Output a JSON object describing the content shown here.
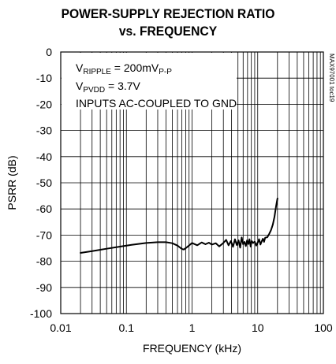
{
  "chart_data": {
    "type": "line",
    "title_line1": "POWER-SUPPLY REJECTION RATIO",
    "title_line2": "vs. FREQUENCY",
    "xlabel": "FREQUENCY (kHz)",
    "ylabel": "PSRR (dB)",
    "x_scale": "log",
    "xlim": [
      0.01,
      100
    ],
    "ylim": [
      -100,
      0
    ],
    "x_ticks": [
      "0.01",
      "0.1",
      "1",
      "10",
      "100"
    ],
    "y_ticks": [
      "0",
      "-10",
      "-20",
      "-30",
      "-40",
      "-50",
      "-60",
      "-70",
      "-80",
      "-90",
      "-100"
    ],
    "grid": true,
    "annotations": {
      "line1_main": "V",
      "line1_sub": "RIPPLE",
      "line1_rest": " = 200mV",
      "line1_rest_sub": "P-P",
      "line2_main": "V",
      "line2_sub": "PVDD",
      "line2_rest": " = 3.7V",
      "line3": "INPUTS AC-COUPLED TO GND"
    },
    "side_code": "MAX97001 toc19",
    "series": [
      {
        "x": [
          0.02,
          0.03,
          0.05,
          0.08,
          0.12,
          0.2,
          0.3,
          0.4,
          0.5,
          0.6,
          0.7,
          0.75,
          0.85,
          1.0,
          1.2,
          1.4,
          1.6,
          1.8,
          2.0,
          2.3,
          2.6,
          3.0,
          3.3,
          3.6,
          3.9,
          4.2,
          4.5,
          4.8,
          5.1,
          5.4,
          5.7,
          6.0,
          6.3,
          6.6,
          6.9,
          7.2,
          7.5,
          7.8,
          8.1,
          8.5,
          9.0,
          9.5,
          10.0,
          10.5,
          11.0,
          11.5,
          12.0,
          12.5,
          13.0,
          14.0,
          15.0,
          16.0,
          17.0,
          18.0,
          19.0,
          20.0
        ],
        "y": [
          -76.8,
          -76.1,
          -75.2,
          -74.4,
          -73.7,
          -73.0,
          -72.7,
          -72.7,
          -73.1,
          -74.0,
          -75.3,
          -75.5,
          -74.5,
          -73.0,
          -73.9,
          -72.8,
          -73.5,
          -72.9,
          -73.6,
          -73.1,
          -74.3,
          -73.0,
          -71.8,
          -73.9,
          -72.3,
          -74.5,
          -71.6,
          -73.8,
          -72.0,
          -74.8,
          -70.9,
          -73.5,
          -72.6,
          -74.2,
          -72.0,
          -73.4,
          -71.6,
          -74.4,
          -72.3,
          -73.0,
          -72.5,
          -74.0,
          -72.8,
          -71.6,
          -73.6,
          -72.4,
          -71.4,
          -72.6,
          -71.0,
          -70.8,
          -69.5,
          -68.0,
          -66.0,
          -63.0,
          -59.0,
          -56.0
        ]
      }
    ]
  }
}
